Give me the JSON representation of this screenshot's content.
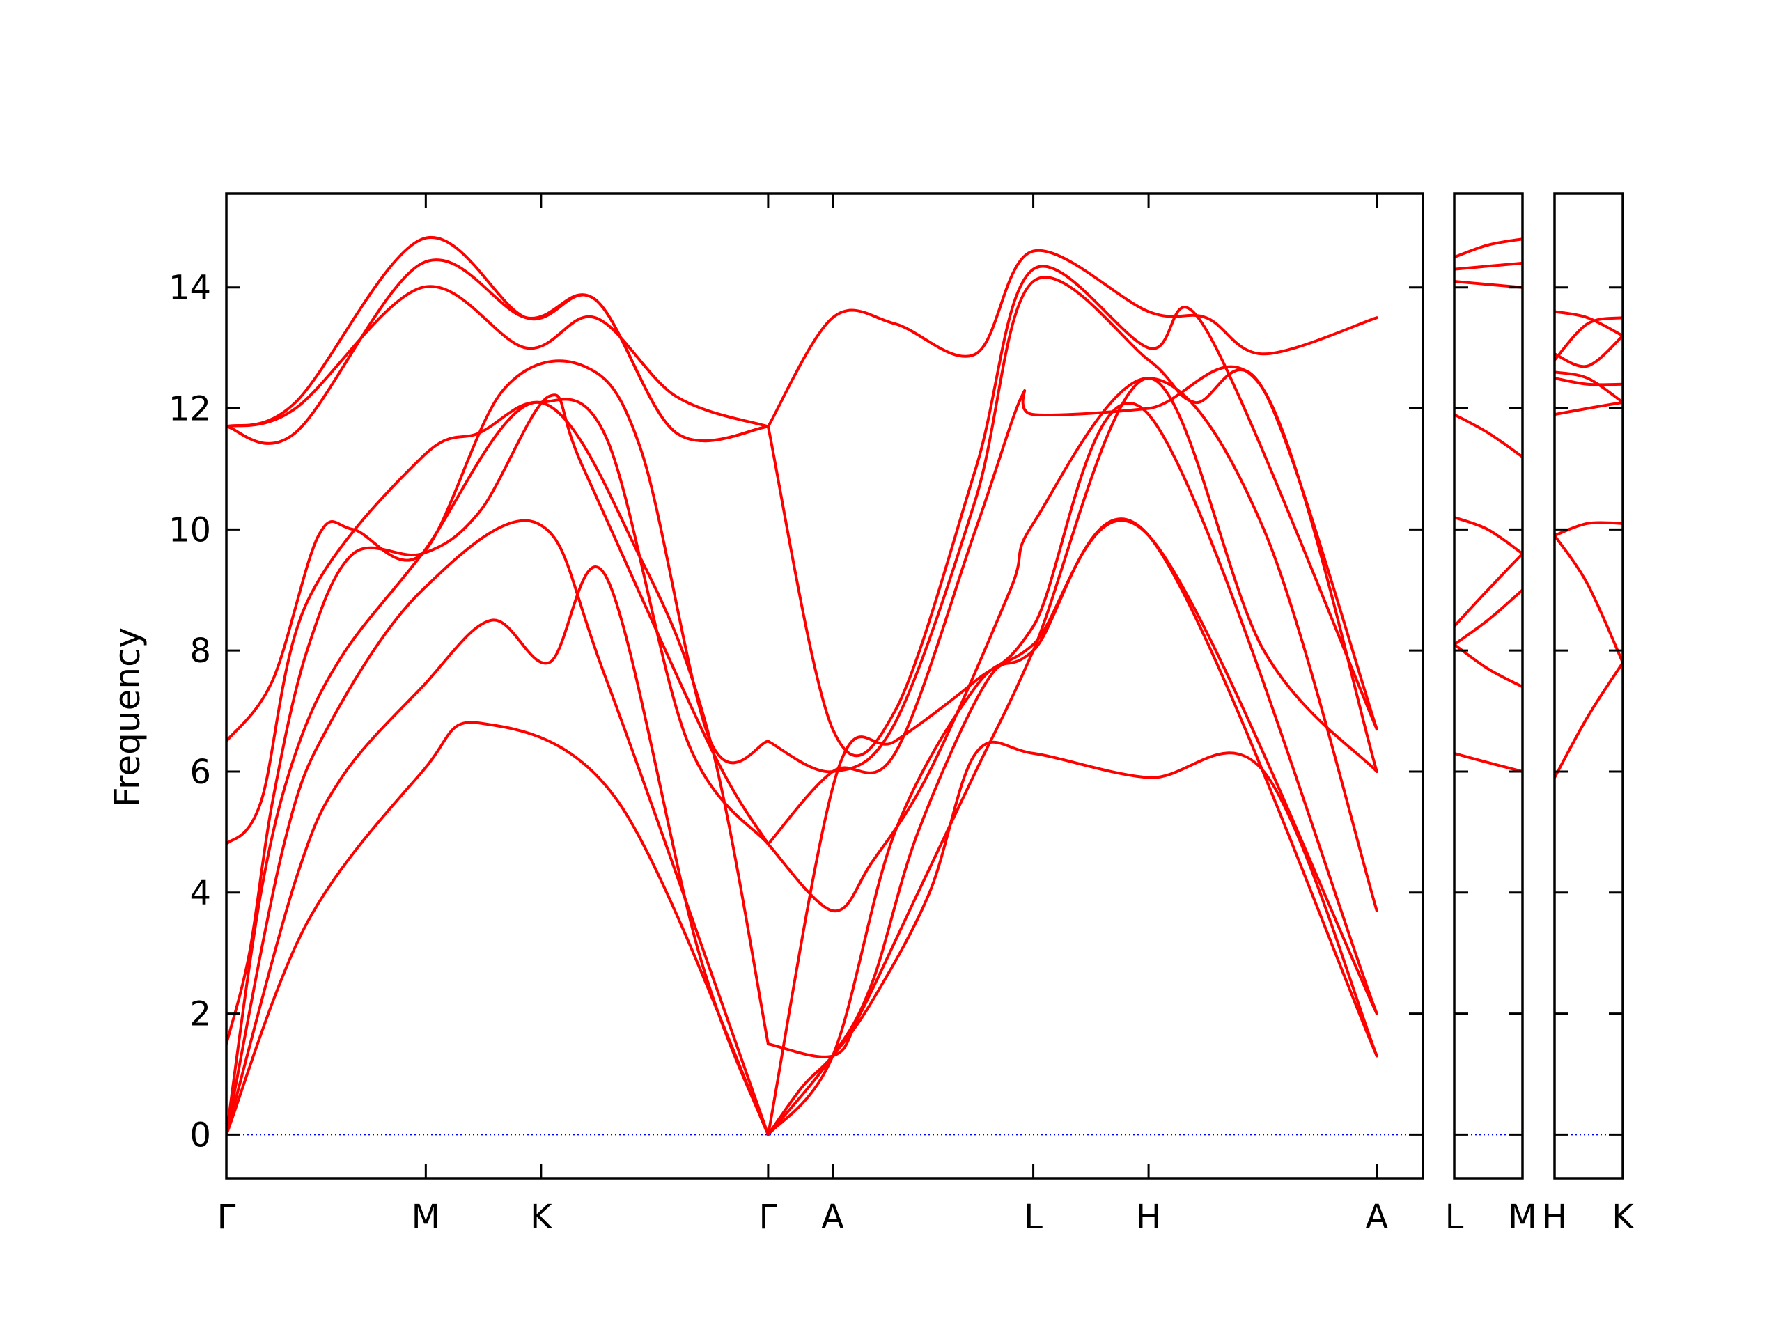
{
  "chart_data": {
    "type": "line",
    "title": "",
    "xlabel": "",
    "ylabel": "Frequency",
    "ylim": [
      -0.72,
      15.55
    ],
    "yticks": [
      0,
      2,
      4,
      6,
      8,
      10,
      12,
      14
    ],
    "grid": false,
    "legend": "none",
    "colors": {
      "bands": "#ff0000",
      "zero_line": "#0000ff",
      "axes": "#000000"
    },
    "panels": [
      {
        "xlim": [
          0,
          10.38
        ],
        "xticks": [
          {
            "label": "Γ",
            "x": 0
          },
          {
            "label": "M",
            "x": 1.73
          },
          {
            "label": "K",
            "x": 2.73
          },
          {
            "label": "Γ",
            "x": 4.7
          },
          {
            "label": "A",
            "x": 5.26
          },
          {
            "label": "L",
            "x": 7.0
          },
          {
            "label": "H",
            "x": 8.0
          },
          {
            "label": "A",
            "x": 9.98
          }
        ]
      },
      {
        "xlim": [
          10.25,
          10.82
        ],
        "xticks": [
          {
            "label": "L",
            "x": 10.25
          },
          {
            "label": "M",
            "x": 10.82
          }
        ]
      },
      {
        "xlim": [
          10.82,
          11.4
        ],
        "xticks": [
          {
            "label": "H",
            "x": 10.82
          },
          {
            "label": "K",
            "x": 11.4
          }
        ]
      }
    ],
    "series": [
      {
        "panel": 0,
        "points": [
          [
            0,
            0
          ],
          [
            0.7,
            3.5
          ],
          [
            1.7,
            6.0
          ],
          [
            2.2,
            6.8
          ],
          [
            3.4,
            5.5
          ],
          [
            4.7,
            0
          ]
        ]
      },
      {
        "panel": 0,
        "points": [
          [
            0,
            0
          ],
          [
            0.6,
            4.2
          ],
          [
            1.0,
            5.9
          ],
          [
            1.7,
            7.4
          ],
          [
            2.3,
            8.5
          ],
          [
            2.8,
            7.8
          ],
          [
            3.3,
            9.2
          ],
          [
            4.1,
            3.0
          ],
          [
            4.7,
            0
          ]
        ]
      },
      {
        "panel": 0,
        "points": [
          [
            0,
            0
          ],
          [
            0.5,
            4.8
          ],
          [
            0.9,
            6.8
          ],
          [
            1.7,
            9.0
          ],
          [
            2.7,
            10.1
          ],
          [
            3.3,
            7.5
          ],
          [
            4.7,
            0
          ]
        ]
      },
      {
        "panel": 0,
        "points": [
          [
            0,
            0
          ],
          [
            0.3,
            4.0
          ],
          [
            0.6,
            6.3
          ],
          [
            1.0,
            7.9
          ],
          [
            1.7,
            9.6
          ],
          [
            2.7,
            12.1
          ],
          [
            3.6,
            9.5
          ],
          [
            4.2,
            6.5
          ],
          [
            4.7,
            1.5
          ]
        ]
      },
      {
        "panel": 0,
        "points": [
          [
            0,
            1.5
          ],
          [
            0.2,
            3.0
          ],
          [
            0.4,
            5.5
          ],
          [
            0.7,
            8.0
          ],
          [
            1.1,
            9.6
          ],
          [
            1.7,
            9.6
          ],
          [
            2.2,
            10.3
          ],
          [
            2.8,
            12.2
          ],
          [
            3.1,
            11.0
          ],
          [
            4.2,
            6.4
          ],
          [
            4.7,
            4.8
          ]
        ]
      },
      {
        "panel": 0,
        "points": [
          [
            0,
            4.8
          ],
          [
            0.3,
            5.5
          ],
          [
            0.7,
            8.8
          ],
          [
            1.7,
            11.2
          ],
          [
            2.2,
            11.6
          ],
          [
            2.7,
            12.1
          ],
          [
            3.3,
            11.5
          ],
          [
            4.0,
            6.5
          ],
          [
            4.7,
            4.8
          ]
        ]
      },
      {
        "panel": 0,
        "points": [
          [
            0,
            6.5
          ],
          [
            0.4,
            7.5
          ],
          [
            0.8,
            9.9
          ],
          [
            1.1,
            10.0
          ],
          [
            1.7,
            9.6
          ],
          [
            2.4,
            12.3
          ],
          [
            3.1,
            12.7
          ],
          [
            3.6,
            11.3
          ],
          [
            4.2,
            6.5
          ],
          [
            4.7,
            6.5
          ]
        ]
      },
      {
        "panel": 0,
        "points": [
          [
            0,
            11.7
          ],
          [
            0.6,
            12.0
          ],
          [
            1.7,
            14.0
          ],
          [
            2.6,
            13.0
          ],
          [
            3.2,
            13.5
          ],
          [
            3.9,
            12.2
          ],
          [
            4.7,
            11.7
          ]
        ]
      },
      {
        "panel": 0,
        "points": [
          [
            0,
            11.7
          ],
          [
            0.6,
            11.6
          ],
          [
            1.7,
            14.4
          ],
          [
            2.6,
            13.5
          ],
          [
            3.2,
            13.8
          ],
          [
            3.9,
            11.6
          ],
          [
            4.7,
            11.7
          ]
        ]
      },
      {
        "panel": 0,
        "points": [
          [
            0,
            11.7
          ],
          [
            0.6,
            12.1
          ],
          [
            1.7,
            14.8
          ],
          [
            2.6,
            13.5
          ],
          [
            3.2,
            13.8
          ],
          [
            3.9,
            11.6
          ],
          [
            4.7,
            11.7
          ]
        ]
      },
      {
        "panel": 0,
        "points": [
          [
            4.7,
            0
          ],
          [
            5.0,
            0.8
          ],
          [
            5.26,
            1.3
          ],
          [
            5.6,
            2.2
          ],
          [
            6.1,
            4.0
          ],
          [
            6.5,
            6.3
          ],
          [
            7.0,
            6.3
          ],
          [
            8.0,
            5.9
          ],
          [
            9.0,
            6.0
          ],
          [
            9.98,
            1.3
          ]
        ]
      },
      {
        "panel": 0,
        "points": [
          [
            4.7,
            0
          ],
          [
            5.26,
            1.3
          ],
          [
            5.6,
            2.5
          ],
          [
            6.0,
            5.0
          ],
          [
            6.6,
            7.5
          ],
          [
            7.0,
            8.0
          ],
          [
            8.0,
            9.9
          ],
          [
            9.98,
            1.3
          ]
        ]
      },
      {
        "panel": 0,
        "points": [
          [
            4.7,
            0
          ],
          [
            5.26,
            1.3
          ],
          [
            5.8,
            5.0
          ],
          [
            6.5,
            7.4
          ],
          [
            7.0,
            8.1
          ],
          [
            8.0,
            9.9
          ],
          [
            9.98,
            2.0
          ]
        ]
      },
      {
        "panel": 0,
        "points": [
          [
            4.7,
            0
          ],
          [
            5.3,
            6.0
          ],
          [
            5.8,
            6.5
          ],
          [
            6.5,
            7.5
          ],
          [
            7.0,
            8.4
          ],
          [
            8.0,
            11.9
          ],
          [
            9.98,
            2.0
          ]
        ]
      },
      {
        "panel": 0,
        "points": [
          [
            4.7,
            1.5
          ],
          [
            5.26,
            1.3
          ],
          [
            5.5,
            2.0
          ],
          [
            6.0,
            4.0
          ],
          [
            6.5,
            6.0
          ],
          [
            7.0,
            8.0
          ],
          [
            8.0,
            12.5
          ],
          [
            9.0,
            8.0
          ],
          [
            9.98,
            6.0
          ]
        ]
      },
      {
        "panel": 0,
        "points": [
          [
            4.7,
            4.8
          ],
          [
            5.26,
            3.7
          ],
          [
            5.6,
            4.5
          ],
          [
            6.1,
            6.0
          ],
          [
            6.8,
            9.0
          ],
          [
            7.0,
            10.1
          ],
          [
            8.0,
            12.5
          ],
          [
            9.0,
            10.0
          ],
          [
            9.98,
            3.7
          ]
        ]
      },
      {
        "panel": 0,
        "points": [
          [
            4.7,
            4.8
          ],
          [
            5.26,
            6.0
          ],
          [
            5.8,
            6.3
          ],
          [
            6.5,
            10.0
          ],
          [
            6.9,
            12.2
          ],
          [
            7.0,
            11.9
          ],
          [
            8.0,
            12.0
          ],
          [
            9.0,
            12.3
          ],
          [
            9.98,
            6.0
          ]
        ]
      },
      {
        "panel": 0,
        "points": [
          [
            4.7,
            6.5
          ],
          [
            5.26,
            6.0
          ],
          [
            5.8,
            6.8
          ],
          [
            6.5,
            10.5
          ],
          [
            7.0,
            14.1
          ],
          [
            8.0,
            12.8
          ],
          [
            8.4,
            12.1
          ],
          [
            9.0,
            12.3
          ],
          [
            9.98,
            6.7
          ]
        ]
      },
      {
        "panel": 0,
        "points": [
          [
            4.7,
            11.7
          ],
          [
            5.26,
            6.7
          ],
          [
            5.8,
            7.0
          ],
          [
            6.5,
            11.0
          ],
          [
            7.0,
            14.3
          ],
          [
            8.0,
            13.0
          ],
          [
            8.5,
            13.3
          ],
          [
            9.98,
            6.7
          ]
        ]
      },
      {
        "panel": 0,
        "points": [
          [
            4.7,
            11.7
          ],
          [
            5.26,
            13.5
          ],
          [
            5.8,
            13.4
          ],
          [
            6.5,
            12.9
          ],
          [
            7.0,
            14.6
          ],
          [
            8.0,
            13.6
          ],
          [
            8.5,
            13.5
          ],
          [
            9.0,
            12.9
          ],
          [
            9.98,
            13.5
          ]
        ]
      },
      {
        "panel": 1,
        "points": [
          [
            10.25,
            6.3
          ],
          [
            10.53,
            6.15
          ],
          [
            10.82,
            6.0
          ]
        ]
      },
      {
        "panel": 1,
        "points": [
          [
            10.25,
            8.1
          ],
          [
            10.53,
            7.7
          ],
          [
            10.82,
            7.4
          ]
        ]
      },
      {
        "panel": 1,
        "points": [
          [
            10.25,
            8.1
          ],
          [
            10.53,
            8.5
          ],
          [
            10.82,
            9.0
          ]
        ]
      },
      {
        "panel": 1,
        "points": [
          [
            10.25,
            8.4
          ],
          [
            10.53,
            9.0
          ],
          [
            10.82,
            9.6
          ]
        ]
      },
      {
        "panel": 1,
        "points": [
          [
            10.25,
            10.2
          ],
          [
            10.53,
            10.0
          ],
          [
            10.82,
            9.6
          ]
        ]
      },
      {
        "panel": 1,
        "points": [
          [
            10.25,
            11.9
          ],
          [
            10.53,
            11.6
          ],
          [
            10.82,
            11.2
          ]
        ]
      },
      {
        "panel": 1,
        "points": [
          [
            10.25,
            14.1
          ],
          [
            10.53,
            14.05
          ],
          [
            10.82,
            14.0
          ]
        ]
      },
      {
        "panel": 1,
        "points": [
          [
            10.25,
            14.3
          ],
          [
            10.53,
            14.35
          ],
          [
            10.82,
            14.4
          ]
        ]
      },
      {
        "panel": 1,
        "points": [
          [
            10.25,
            14.5
          ],
          [
            10.53,
            14.7
          ],
          [
            10.82,
            14.8
          ]
        ]
      },
      {
        "panel": 2,
        "points": [
          [
            10.82,
            5.9
          ],
          [
            11.1,
            6.9
          ],
          [
            11.4,
            7.8
          ]
        ]
      },
      {
        "panel": 2,
        "points": [
          [
            10.82,
            9.9
          ],
          [
            11.1,
            9.1
          ],
          [
            11.4,
            7.8
          ]
        ]
      },
      {
        "panel": 2,
        "points": [
          [
            10.82,
            9.9
          ],
          [
            11.1,
            10.1
          ],
          [
            11.4,
            10.1
          ]
        ]
      },
      {
        "panel": 2,
        "points": [
          [
            10.82,
            11.9
          ],
          [
            11.1,
            12.0
          ],
          [
            11.4,
            12.1
          ]
        ]
      },
      {
        "panel": 2,
        "points": [
          [
            10.82,
            12.5
          ],
          [
            11.1,
            12.4
          ],
          [
            11.4,
            12.4
          ]
        ]
      },
      {
        "panel": 2,
        "points": [
          [
            10.82,
            12.6
          ],
          [
            11.1,
            12.5
          ],
          [
            11.4,
            12.1
          ]
        ]
      },
      {
        "panel": 2,
        "points": [
          [
            10.82,
            12.8
          ],
          [
            11.1,
            13.4
          ],
          [
            11.4,
            13.5
          ]
        ]
      },
      {
        "panel": 2,
        "points": [
          [
            10.82,
            12.9
          ],
          [
            11.1,
            12.7
          ],
          [
            11.4,
            13.2
          ]
        ]
      },
      {
        "panel": 2,
        "points": [
          [
            10.82,
            13.6
          ],
          [
            11.1,
            13.5
          ],
          [
            11.4,
            13.2
          ]
        ]
      }
    ]
  }
}
